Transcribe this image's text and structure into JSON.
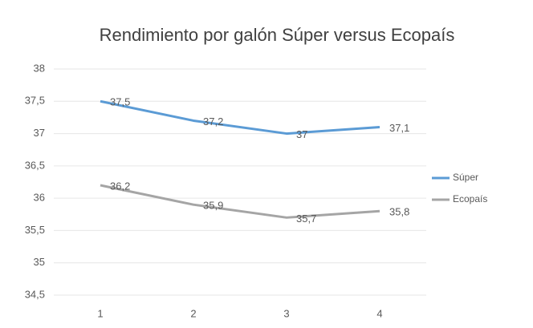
{
  "chart_data": {
    "type": "line",
    "title": "Rendimiento por galón Súper versus Ecopaís",
    "categories": [
      "1",
      "2",
      "3",
      "4"
    ],
    "series": [
      {
        "name": "Súper",
        "color": "#5b9bd5",
        "values": [
          37.5,
          37.2,
          37,
          37.1
        ],
        "value_labels": [
          "37,5",
          "37,2",
          "37",
          "37,1"
        ]
      },
      {
        "name": "Ecopaís",
        "color": "#a5a5a5",
        "values": [
          36.2,
          35.9,
          35.7,
          35.8
        ],
        "value_labels": [
          "36,2",
          "35,9",
          "35,7",
          "35,8"
        ]
      }
    ],
    "ylim": [
      34.5,
      38
    ],
    "yticks": [
      {
        "value": 34.5,
        "label": "34,5"
      },
      35,
      {
        "value": 35.5,
        "label": "35,5"
      },
      36,
      {
        "value": 36.5,
        "label": "36,5"
      },
      37,
      {
        "value": 37.5,
        "label": "37,5"
      },
      38
    ],
    "grid": true,
    "legend": "right"
  }
}
